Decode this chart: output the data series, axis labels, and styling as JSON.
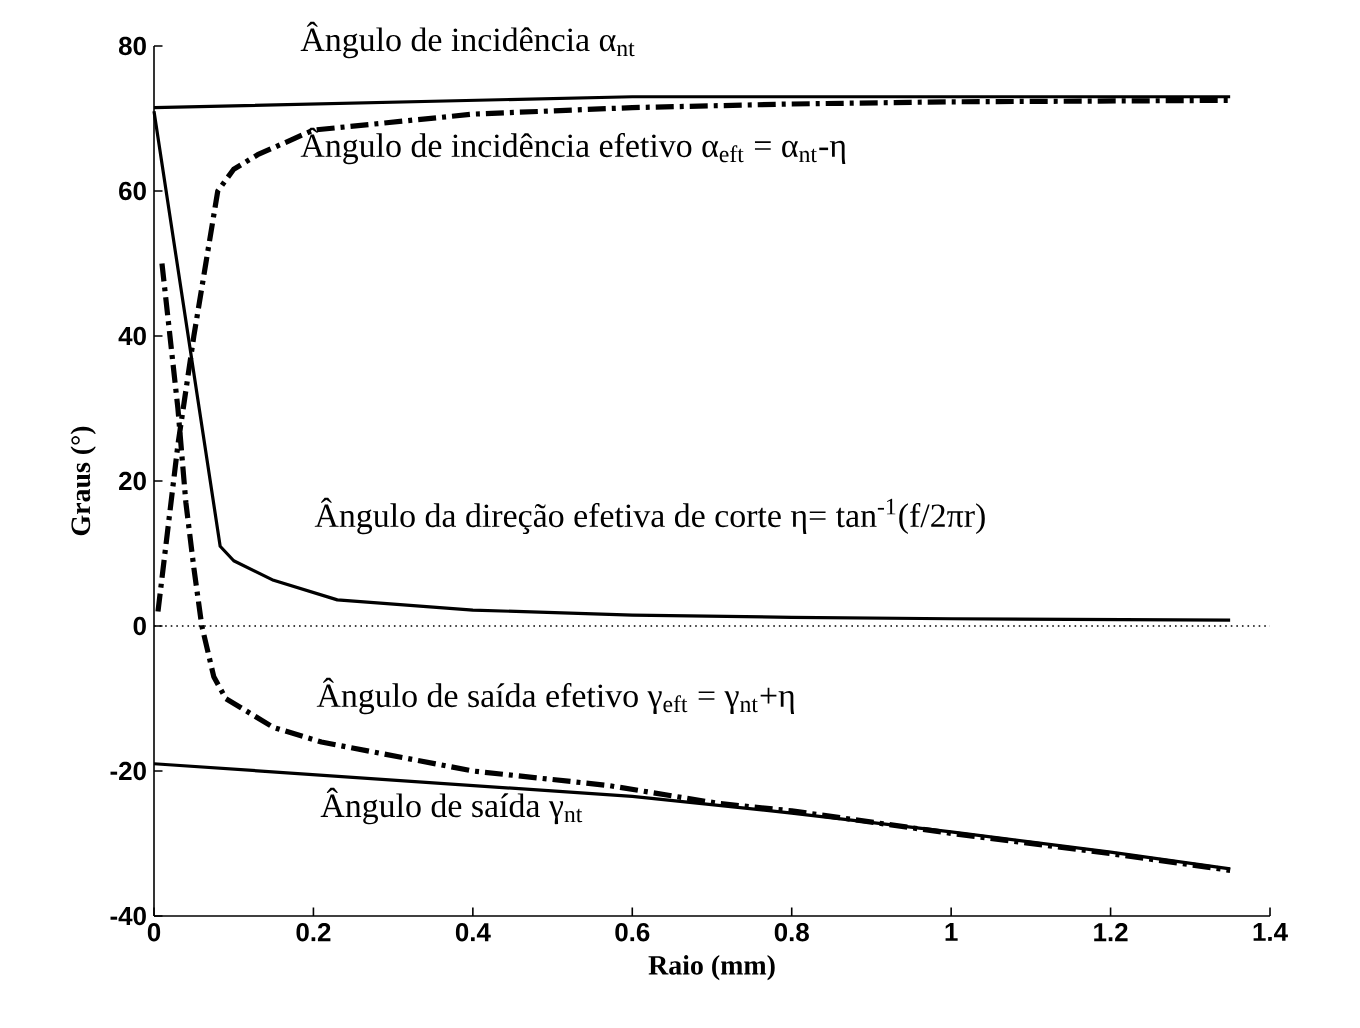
{
  "chart_data": {
    "type": "line",
    "xlabel": "Raio (mm)",
    "ylabel": "Graus (°)",
    "xlim": [
      0,
      1.4
    ],
    "ylim": [
      -40,
      80
    ],
    "xticks": [
      0,
      0.2,
      0.4,
      0.6,
      0.8,
      1,
      1.2,
      1.4
    ],
    "yticks": [
      -40,
      -20,
      0,
      20,
      40,
      60,
      80
    ],
    "series": [
      {
        "color": "#000000",
        "line_style": "solid",
        "x": [
          0,
          0.2,
          0.4,
          0.6,
          0.8,
          1,
          1.2,
          1.35
        ],
        "values": [
          71.5,
          72,
          72.5,
          73,
          73,
          73,
          73,
          73
        ]
      },
      {
        "color": "#000000",
        "line_style": "dashed",
        "x": [
          0.005,
          0.03,
          0.05,
          0.065,
          0.08,
          0.1,
          0.13,
          0.2,
          0.4,
          0.6,
          0.8,
          1,
          1.35
        ],
        "values": [
          2,
          25,
          40,
          50,
          60,
          63,
          65,
          68.4,
          70.6,
          71.5,
          72,
          72.3,
          72.5
        ]
      },
      {
        "color": "#000000",
        "line_style": "solid",
        "x": [
          0,
          0.083,
          0.1,
          0.15,
          0.23,
          0.4,
          0.6,
          0.8,
          1,
          1.35
        ],
        "values": [
          71,
          11,
          9,
          6.3,
          3.6,
          2.2,
          1.5,
          1.2,
          1,
          0.8
        ]
      },
      {
        "color": "#000000",
        "line_style": "dashed",
        "x": [
          0.01,
          0.02,
          0.03,
          0.04,
          0.05,
          0.06,
          0.075,
          0.09,
          0.15,
          0.21,
          0.4,
          0.57,
          0.71,
          0.8,
          1,
          1.2,
          1.35
        ],
        "values": [
          50,
          40,
          30,
          17,
          8,
          0,
          -7,
          -10,
          -14,
          -16,
          -20,
          -22,
          -24.5,
          -25.5,
          -28.6,
          -31.4,
          -33.7
        ]
      },
      {
        "color": "#000000",
        "line_style": "solid",
        "x": [
          0,
          0.2,
          0.4,
          0.6,
          0.8,
          1,
          1.2,
          1.35
        ],
        "values": [
          -19,
          -20.5,
          -22,
          -23.5,
          -25.8,
          -28.4,
          -31.2,
          -33.5
        ]
      }
    ],
    "ref_lines": [
      {
        "axis": "y",
        "value": 0,
        "line_style": "dotted",
        "color": "#000000"
      }
    ],
    "annotations": [
      "Ângulo de incidência α$_{nt}$",
      "Ângulo de incidência efetivo α$_{eft}$ = α$_{nt}$-η",
      "Ângulo da direção efetiva de corte η= tan$^{-1}$(f/2πr)",
      "Ângulo de saída efetivo γ$_{eft}$ = γ$_{nt}$+η",
      "Ângulo de saída γ$_{nt}$"
    ]
  }
}
